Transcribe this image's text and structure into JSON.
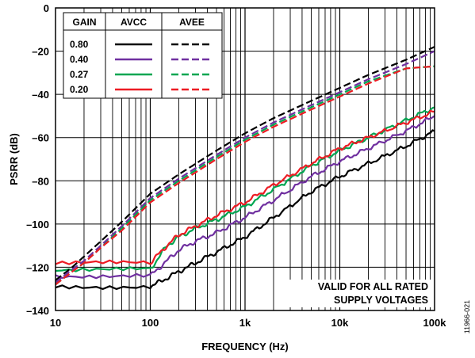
{
  "chart_data": {
    "type": "line",
    "title": "",
    "xlabel": "FREQUENCY (Hz)",
    "ylabel": "PSRR (dB)",
    "xscale": "log",
    "xlim": [
      10,
      100000
    ],
    "ylim": [
      -140,
      0
    ],
    "x_ticks": [
      10,
      100,
      1000,
      10000,
      100000
    ],
    "x_tick_labels": [
      "10",
      "100",
      "1k",
      "10k",
      "100k"
    ],
    "y_ticks": [
      0,
      -20,
      -40,
      -60,
      -80,
      -100,
      -120,
      -140
    ],
    "y_tick_labels": [
      "0",
      "–20",
      "–40",
      "–60",
      "–80",
      "–100",
      "–120",
      "–140"
    ],
    "grid": true,
    "legend": {
      "placement": "top-left",
      "headers": [
        "GAIN",
        "AVCC",
        "AVEE"
      ],
      "rows": [
        {
          "gain": "0.80",
          "color": "#000000"
        },
        {
          "gain": "0.40",
          "color": "#7030a0"
        },
        {
          "gain": "0.27",
          "color": "#00a651"
        },
        {
          "gain": "0.20",
          "color": "#ed1c24"
        }
      ]
    },
    "annotation": [
      "VALID FOR ALL RATED",
      "SUPPLY VOLTAGES"
    ],
    "figure_id": "11966-021",
    "series": [
      {
        "gain": "0.80",
        "supply": "AVCC",
        "color": "#000000",
        "style": "solid",
        "x": [
          10,
          100,
          150,
          200,
          300,
          500,
          1000,
          2000,
          5000,
          10000,
          20000,
          50000,
          100000
        ],
        "y": [
          -129,
          -129,
          -125,
          -122,
          -118,
          -113,
          -106,
          -97,
          -85,
          -78,
          -72,
          -64,
          -57
        ]
      },
      {
        "gain": "0.40",
        "supply": "AVCC",
        "color": "#7030a0",
        "style": "solid",
        "x": [
          10,
          100,
          150,
          200,
          300,
          500,
          1000,
          2000,
          5000,
          10000,
          20000,
          50000,
          100000
        ],
        "y": [
          -124,
          -124,
          -117,
          -112,
          -108,
          -104,
          -97,
          -89,
          -78,
          -71,
          -65,
          -57,
          -50
        ]
      },
      {
        "gain": "0.27",
        "supply": "AVCC",
        "color": "#00a651",
        "style": "solid",
        "x": [
          10,
          100,
          150,
          200,
          300,
          500,
          1000,
          2000,
          5000,
          10000,
          20000,
          50000,
          100000
        ],
        "y": [
          -121,
          -121,
          -110,
          -106,
          -102,
          -98,
          -92,
          -84,
          -73,
          -66,
          -60,
          -52,
          -46
        ]
      },
      {
        "gain": "0.20",
        "supply": "AVCC",
        "color": "#ed1c24",
        "style": "solid",
        "x": [
          10,
          100,
          150,
          200,
          300,
          500,
          1000,
          2000,
          5000,
          10000,
          20000,
          50000,
          100000
        ],
        "y": [
          -118,
          -118,
          -110,
          -105,
          -101,
          -96,
          -90,
          -82,
          -72,
          -65,
          -60,
          -53,
          -48
        ]
      },
      {
        "gain": "0.80",
        "supply": "AVEE",
        "color": "#000000",
        "style": "dashed",
        "x": [
          10,
          15,
          20,
          30,
          50,
          100,
          200,
          500,
          1000,
          2000,
          5000,
          10000,
          20000,
          50000,
          100000
        ],
        "y": [
          -126,
          -120,
          -115,
          -108,
          -99,
          -86,
          -77,
          -66,
          -58,
          -51,
          -43,
          -37,
          -31,
          -24,
          -18
        ]
      },
      {
        "gain": "0.40",
        "supply": "AVEE",
        "color": "#7030a0",
        "style": "dashed",
        "x": [
          10,
          15,
          20,
          30,
          50,
          100,
          200,
          500,
          1000,
          2000,
          5000,
          10000,
          20000,
          50000,
          100000
        ],
        "y": [
          -127,
          -121,
          -117,
          -110,
          -101,
          -88,
          -79,
          -68,
          -60,
          -53,
          -45,
          -39,
          -33,
          -26,
          -20
        ]
      },
      {
        "gain": "0.27",
        "supply": "AVEE",
        "color": "#00a651",
        "style": "dashed",
        "x": [
          10,
          15,
          20,
          30,
          50,
          100,
          200,
          500,
          1000,
          2000,
          5000,
          10000,
          20000,
          50000,
          100000
        ],
        "y": [
          -128,
          -122,
          -118,
          -111,
          -102,
          -89,
          -80,
          -69,
          -61,
          -54,
          -46,
          -40,
          -34,
          -28,
          -27
        ]
      },
      {
        "gain": "0.20",
        "supply": "AVEE",
        "color": "#ed1c24",
        "style": "dashed",
        "x": [
          10,
          15,
          20,
          30,
          50,
          100,
          200,
          500,
          1000,
          2000,
          5000,
          10000,
          20000,
          50000,
          100000
        ],
        "y": [
          -128,
          -122,
          -118,
          -111,
          -103,
          -90,
          -81,
          -70,
          -62,
          -55,
          -47,
          -41,
          -35,
          -28,
          -27
        ]
      }
    ]
  }
}
